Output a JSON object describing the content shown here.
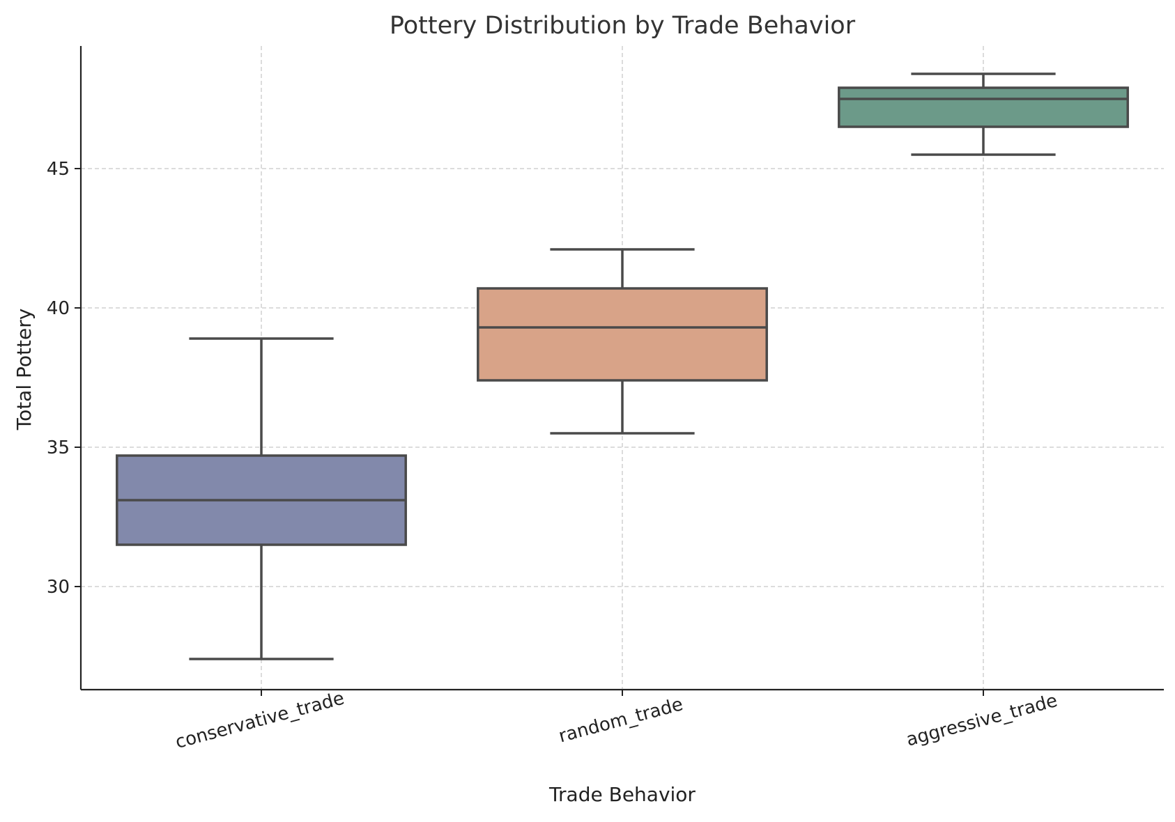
{
  "chart_data": {
    "type": "boxplot",
    "title": "Pottery Distribution by Trade Behavior",
    "xlabel": "Trade Behavior",
    "ylabel": "Total Pottery",
    "ylim": [
      26.3,
      49.4
    ],
    "yticks": [
      30,
      35,
      40,
      45
    ],
    "grid": true,
    "categories": [
      "conservative_trade",
      "random_trade",
      "aggressive_trade"
    ],
    "boxes": [
      {
        "category": "conservative_trade",
        "whisker_low": 27.4,
        "q1": 31.5,
        "median": 33.1,
        "q3": 34.7,
        "whisker_high": 38.9,
        "color": "#8289ab"
      },
      {
        "category": "random_trade",
        "whisker_low": 35.5,
        "q1": 37.4,
        "median": 39.3,
        "q3": 40.7,
        "whisker_high": 42.1,
        "color": "#d8a388"
      },
      {
        "category": "aggressive_trade",
        "whisker_low": 45.5,
        "q1": 46.5,
        "median": 47.5,
        "q3": 47.9,
        "whisker_high": 48.4,
        "color": "#6c9a89"
      }
    ]
  }
}
